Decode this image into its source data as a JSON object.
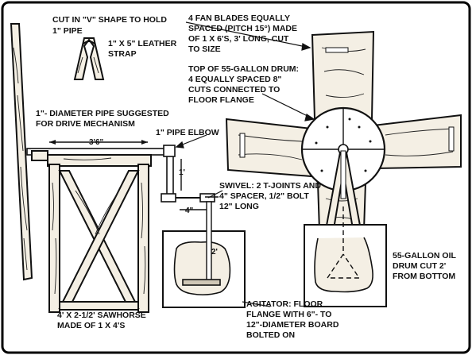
{
  "labels": {
    "cut_v": [
      "CUT IN \"V\" SHAPE TO HOLD",
      "1\" PIPE"
    ],
    "strap": [
      "1\" X 5\" LEATHER",
      "STRAP"
    ],
    "fan_blades": [
      "4 FAN BLADES EQUALLY",
      "SPACED (PITCH 15°) MADE",
      "OF 1 X 6'S, 3' LONG, CUT",
      "TO SIZE"
    ],
    "drum_top": [
      "TOP OF 55-GALLON DRUM:",
      "4 EQUALLY SPACED 8\"",
      "CUTS CONNECTED TO",
      "FLOOR FLANGE"
    ],
    "pipe_suggested": [
      "1\"- DIAMETER PIPE SUGGESTED",
      "FOR DRIVE MECHANISM"
    ],
    "elbow": [
      "1\" PIPE ELBOW"
    ],
    "swivel": [
      "SWIVEL: 2 T-JOINTS AND",
      "4\" SPACER, 1/2\" BOLT",
      "12\" LONG"
    ],
    "sawhorse": [
      "4' X 2-1/2' SAWHORSE",
      "MADE OF 1 X 4'S"
    ],
    "oil_drum": [
      "55-GALLON OIL",
      "DRUM CUT 2'",
      "FROM BOTTOM"
    ],
    "agitator": [
      "AGITATOR: FLOOR",
      "FLANGE WITH 6\"- TO",
      "12\"-DIAMETER BOARD",
      "BOLTED ON"
    ]
  },
  "dimensions": {
    "sawhorse_width": "3'6\"",
    "elbow_drop": "1'",
    "swivel_spacer": "4\"",
    "agitator_depth": "2'"
  }
}
